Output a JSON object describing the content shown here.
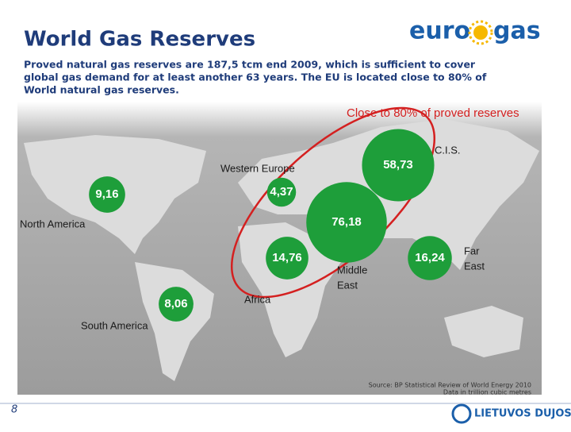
{
  "header": {
    "title": "World Gas Reserves",
    "logo": {
      "left": "euro",
      "right": "gas"
    }
  },
  "body": [
    "Proved natural gas reserves are 187,5 tcm end 2009, which is sufficient to cover",
    "global gas demand for at least another 63 years. The EU is located close to 80% of",
    "World natural gas reserves."
  ],
  "annotation": "Close to 80% of proved reserves",
  "regions": [
    {
      "name": [
        "C.I.S."
      ],
      "value": 58.73,
      "value_label": "58,73"
    },
    {
      "name": [
        "Western Europe"
      ],
      "value": 4.37,
      "value_label": "4,37"
    },
    {
      "name": [
        "North America"
      ],
      "value": 9.16,
      "value_label": "9,16"
    },
    {
      "name": [
        "Middle",
        "East"
      ],
      "value": 76.18,
      "value_label": "76,18"
    },
    {
      "name": [
        "Africa"
      ],
      "value": 14.76,
      "value_label": "14,76"
    },
    {
      "name": [
        "Far",
        "East"
      ],
      "value": 16.24,
      "value_label": "16,24"
    },
    {
      "name": [
        "South America"
      ],
      "value": 8.06,
      "value_label": "8,06"
    }
  ],
  "source": [
    "Source: BP Statistical Review of World Energy 2010",
    "Data in trillion cubic metres"
  ],
  "footer": {
    "page": "8",
    "company": "LIETUVOS DUJOS"
  }
}
